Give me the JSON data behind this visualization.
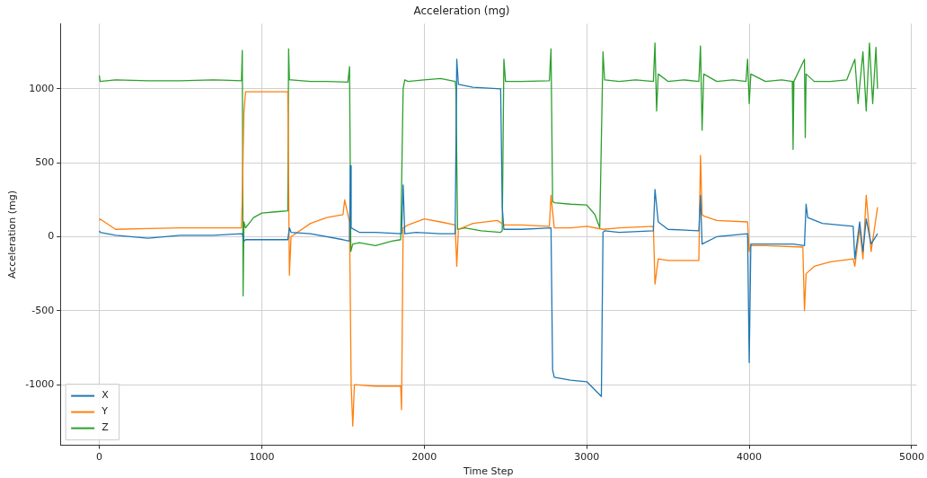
{
  "chart_data": {
    "type": "line",
    "title": "Acceleration (mg)",
    "xlabel": "Time Step",
    "ylabel": "Acceleration (mg)",
    "xlim": [
      -240,
      5030
    ],
    "ylim": [
      -1410,
      1440
    ],
    "xticks": [
      0,
      1000,
      2000,
      3000,
      4000,
      5000
    ],
    "yticks": [
      -1000,
      -500,
      0,
      500,
      1000
    ],
    "grid": true,
    "legend": "bottom left",
    "series": [
      {
        "name": "X",
        "color": "#1f77b4",
        "x": [
          0,
          5,
          100,
          300,
          500,
          700,
          880,
          890,
          900,
          1000,
          1160,
          1170,
          1180,
          1300,
          1500,
          1540,
          1545,
          1550,
          1600,
          1700,
          1860,
          1870,
          1880,
          1950,
          2100,
          2190,
          2200,
          2210,
          2300,
          2470,
          2480,
          2490,
          2600,
          2780,
          2790,
          2800,
          2900,
          3000,
          3090,
          3100,
          3110,
          3200,
          3410,
          3420,
          3440,
          3500,
          3690,
          3700,
          3710,
          3800,
          3990,
          4000,
          4010,
          4100,
          4270,
          4340,
          4350,
          4360,
          4450,
          4640,
          4650,
          4680,
          4700,
          4720,
          4750,
          4790
        ],
        "values": [
          40,
          30,
          10,
          -10,
          10,
          10,
          20,
          -30,
          -20,
          -20,
          -20,
          60,
          30,
          20,
          -20,
          -30,
          480,
          60,
          30,
          30,
          20,
          350,
          20,
          30,
          20,
          20,
          1200,
          1030,
          1010,
          1000,
          200,
          50,
          50,
          60,
          -900,
          -950,
          -970,
          -980,
          -1080,
          30,
          40,
          30,
          40,
          320,
          100,
          50,
          40,
          280,
          -50,
          0,
          20,
          -850,
          -50,
          -50,
          -50,
          -60,
          220,
          130,
          90,
          70,
          -150,
          100,
          -100,
          120,
          -50,
          20
        ]
      },
      {
        "name": "Y",
        "color": "#ff7f0e",
        "x": [
          0,
          5,
          100,
          300,
          500,
          700,
          875,
          880,
          890,
          900,
          1000,
          1160,
          1170,
          1180,
          1300,
          1400,
          1500,
          1510,
          1540,
          1550,
          1560,
          1570,
          1700,
          1855,
          1860,
          1870,
          1900,
          2000,
          2100,
          2190,
          2200,
          2210,
          2300,
          2450,
          2490,
          2600,
          2770,
          2780,
          2800,
          2900,
          3000,
          3100,
          3200,
          3410,
          3420,
          3440,
          3500,
          3690,
          3700,
          3710,
          3720,
          3800,
          3990,
          4000,
          4010,
          4100,
          4330,
          4340,
          4350,
          4400,
          4500,
          4640,
          4650,
          4680,
          4700,
          4720,
          4750,
          4790
        ],
        "values": [
          110,
          120,
          50,
          55,
          60,
          60,
          60,
          270,
          840,
          980,
          980,
          980,
          -260,
          0,
          90,
          130,
          150,
          250,
          100,
          -1000,
          -1280,
          -1000,
          -1010,
          -1010,
          -1170,
          60,
          80,
          120,
          100,
          80,
          -200,
          50,
          90,
          110,
          80,
          80,
          70,
          280,
          60,
          60,
          70,
          50,
          60,
          70,
          -320,
          -150,
          -160,
          -160,
          550,
          150,
          140,
          110,
          100,
          -100,
          -60,
          -60,
          -70,
          -500,
          -250,
          -200,
          -170,
          -150,
          -200,
          60,
          -150,
          280,
          -100,
          200
        ]
      },
      {
        "name": "Z",
        "color": "#2ca02c",
        "x": [
          0,
          5,
          100,
          300,
          500,
          700,
          875,
          880,
          885,
          890,
          900,
          950,
          1000,
          1100,
          1160,
          1165,
          1170,
          1180,
          1300,
          1400,
          1530,
          1540,
          1548,
          1560,
          1600,
          1700,
          1800,
          1855,
          1870,
          1880,
          1900,
          2000,
          2100,
          2190,
          2195,
          2205,
          2250,
          2350,
          2470,
          2480,
          2490,
          2500,
          2600,
          2770,
          2780,
          2790,
          2800,
          2900,
          3000,
          3050,
          3080,
          3100,
          3110,
          3200,
          3300,
          3410,
          3420,
          3430,
          3440,
          3500,
          3600,
          3690,
          3700,
          3710,
          3720,
          3800,
          3900,
          3980,
          3990,
          4000,
          4010,
          4100,
          4200,
          4265,
          4270,
          4275,
          4340,
          4345,
          4350,
          4400,
          4500,
          4600,
          4650,
          4670,
          4700,
          4720,
          4740,
          4760,
          4780,
          4790
        ],
        "values": [
          1090,
          1050,
          1060,
          1055,
          1055,
          1060,
          1055,
          1260,
          -400,
          100,
          60,
          130,
          160,
          170,
          175,
          1270,
          1060,
          1060,
          1050,
          1050,
          1045,
          1150,
          -100,
          -50,
          -40,
          -60,
          -30,
          -20,
          1000,
          1060,
          1050,
          1060,
          1070,
          1050,
          1000,
          50,
          60,
          40,
          30,
          40,
          1200,
          1050,
          1050,
          1055,
          1270,
          240,
          230,
          220,
          215,
          150,
          60,
          1250,
          1060,
          1050,
          1060,
          1050,
          1310,
          850,
          1100,
          1050,
          1060,
          1050,
          1290,
          720,
          1100,
          1050,
          1060,
          1050,
          1200,
          900,
          1100,
          1050,
          1060,
          1050,
          590,
          1050,
          1200,
          670,
          1100,
          1050,
          1050,
          1060,
          1200,
          900,
          1250,
          850,
          1310,
          900,
          1280,
          1000
        ]
      }
    ]
  }
}
